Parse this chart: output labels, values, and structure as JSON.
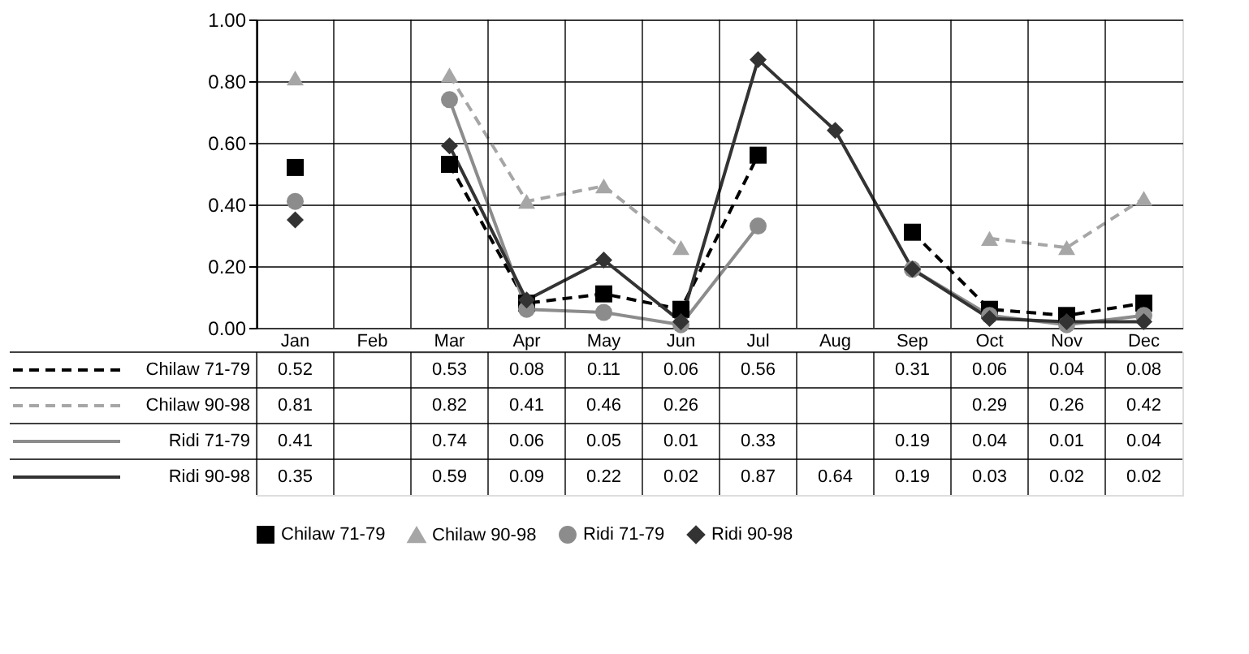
{
  "chart_data": {
    "type": "line",
    "categories": [
      "Jan",
      "Feb",
      "Mar",
      "Apr",
      "May",
      "Jun",
      "Jul",
      "Aug",
      "Sep",
      "Oct",
      "Nov",
      "Dec"
    ],
    "series": [
      {
        "name": "Chilaw 71-79",
        "color": "#000000",
        "marker": "square",
        "line_style": "dashed",
        "values": [
          0.52,
          null,
          0.53,
          0.08,
          0.11,
          0.06,
          0.56,
          null,
          0.31,
          0.06,
          0.04,
          0.08
        ]
      },
      {
        "name": "Chilaw 90-98",
        "color": "#a6a6a6",
        "marker": "triangle",
        "line_style": "dashed",
        "values": [
          0.81,
          null,
          0.82,
          0.41,
          0.46,
          0.26,
          null,
          null,
          null,
          0.29,
          0.26,
          0.42
        ]
      },
      {
        "name": "Ridi 71-79",
        "color": "#8c8c8c",
        "marker": "circle",
        "line_style": "solid",
        "values": [
          0.41,
          null,
          0.74,
          0.06,
          0.05,
          0.01,
          0.33,
          null,
          0.19,
          0.04,
          0.01,
          0.04
        ]
      },
      {
        "name": "Ridi 90-98",
        "color": "#333333",
        "marker": "diamond",
        "line_style": "solid",
        "values": [
          0.35,
          null,
          0.59,
          0.09,
          0.22,
          0.02,
          0.87,
          0.64,
          0.19,
          0.03,
          0.02,
          0.02
        ]
      }
    ],
    "ylim": [
      0,
      1
    ],
    "yticks": [
      {
        "value": 0,
        "label": "0.00"
      },
      {
        "value": 0.2,
        "label": "0.20"
      },
      {
        "value": 0.4,
        "label": "0.40"
      },
      {
        "value": 0.6,
        "label": "0.60"
      },
      {
        "value": 0.8,
        "label": "0.80"
      },
      {
        "value": 1,
        "label": "1.00"
      }
    ],
    "grid": true,
    "legend": "bottom",
    "data_labels": true
  }
}
